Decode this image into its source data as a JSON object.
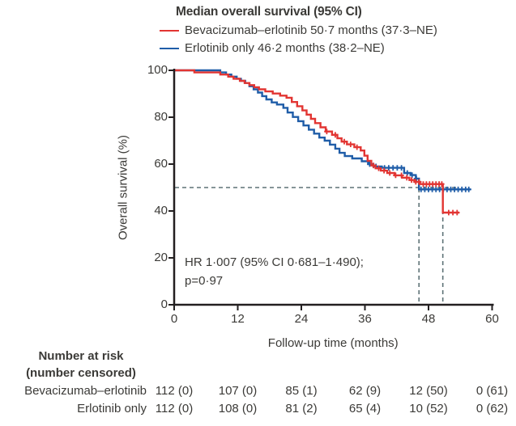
{
  "figure": {
    "legend": {
      "title": "Median overall survival (95% CI)",
      "items": [
        {
          "label": "Bevacizumab–erlotinib 50·7 months (37·3–NE)",
          "color": "#e23532"
        },
        {
          "label": "Erlotinib only 46·2 months (38·2–NE)",
          "color": "#1f5da8"
        }
      ]
    },
    "annotation": {
      "line1": "HR 1·007 (95% CI 0·681–1·490);",
      "line2": "p=0·97"
    },
    "colors": {
      "bevacizumab_erlotinib": "#e23532",
      "erlotinib_only": "#1f5da8",
      "reference_dash": "#5e7276",
      "axis": "#231f20",
      "text": "#3b3a37"
    }
  },
  "chart_data": {
    "type": "line",
    "subtype": "kaplan-meier-step",
    "title": "Median overall survival (95% CI)",
    "xlabel": "Follow-up time (months)",
    "ylabel": "Overall survival (%)",
    "xlim": [
      0,
      60
    ],
    "ylim": [
      0,
      100
    ],
    "xticks": [
      0,
      12,
      24,
      36,
      48,
      60
    ],
    "yticks": [
      0,
      20,
      40,
      60,
      80,
      100
    ],
    "grid": false,
    "legend_position": "top",
    "hr_annotation": "HR 1·007 (95% CI 0·681–1·490); p=0·97",
    "reference_lines": {
      "horizontal_pct": 50,
      "vertical_months": [
        46.2,
        50.7
      ]
    },
    "series": [
      {
        "name": "Bevacizumab–erlotinib",
        "color": "#e23532",
        "median_months": 50.7,
        "ci_95": "37·3–NE",
        "end_time": 53.8,
        "steps": [
          [
            0,
            100
          ],
          [
            3.8,
            99.1
          ],
          [
            8.7,
            98.2
          ],
          [
            10.2,
            97.3
          ],
          [
            11.2,
            96.4
          ],
          [
            12.4,
            95.5
          ],
          [
            13.3,
            94.6
          ],
          [
            14.2,
            93.7
          ],
          [
            15.1,
            92.8
          ],
          [
            16,
            91.9
          ],
          [
            17.2,
            91
          ],
          [
            18.6,
            90.1
          ],
          [
            20,
            89.2
          ],
          [
            21.2,
            88.3
          ],
          [
            22.2,
            86.5
          ],
          [
            23.2,
            84.7
          ],
          [
            24.2,
            82.9
          ],
          [
            25,
            81.1
          ],
          [
            25.8,
            79.3
          ],
          [
            26.6,
            77.5
          ],
          [
            27.6,
            75.7
          ],
          [
            28.6,
            73.9
          ],
          [
            29.8,
            72.5
          ],
          [
            30.8,
            71
          ],
          [
            31.6,
            69.6
          ],
          [
            32.6,
            68.4
          ],
          [
            34,
            67.2
          ],
          [
            35.2,
            65.8
          ],
          [
            35.9,
            63.6
          ],
          [
            36.5,
            61.4
          ],
          [
            37.2,
            59.4
          ],
          [
            38,
            58.2
          ],
          [
            39,
            57.2
          ],
          [
            40.2,
            56.2
          ],
          [
            41.6,
            55.2
          ],
          [
            43,
            54.2
          ],
          [
            44.4,
            53.2
          ],
          [
            45.4,
            52.4
          ],
          [
            46.4,
            51.5
          ],
          [
            50.7,
            39.3
          ]
        ],
        "censor_times": [
          28.8,
          30.4,
          32.1,
          33.3,
          34.5,
          37.6,
          38.6,
          39.6,
          40.7,
          41.8,
          42.9,
          43.9,
          44.8,
          45.6,
          46.2,
          47,
          47.6,
          48.2,
          48.8,
          49.4,
          50,
          50.5,
          51.8,
          52.6,
          53.4
        ]
      },
      {
        "name": "Erlotinib only",
        "color": "#1f5da8",
        "median_months": 46.2,
        "ci_95": "38·2–NE",
        "end_time": 56,
        "steps": [
          [
            0,
            100
          ],
          [
            8.7,
            99.1
          ],
          [
            9.8,
            98.2
          ],
          [
            10.8,
            97.3
          ],
          [
            11.8,
            96.4
          ],
          [
            12.6,
            95.5
          ],
          [
            13.4,
            94.6
          ],
          [
            14.2,
            93.2
          ],
          [
            15,
            91.9
          ],
          [
            15.8,
            90.5
          ],
          [
            16.6,
            89
          ],
          [
            17.4,
            87.6
          ],
          [
            18.4,
            86.3
          ],
          [
            19.4,
            85.4
          ],
          [
            20.6,
            84
          ],
          [
            21.4,
            82
          ],
          [
            22.4,
            80.1
          ],
          [
            23.4,
            78.3
          ],
          [
            24.4,
            76.5
          ],
          [
            25.4,
            74.7
          ],
          [
            26.4,
            73
          ],
          [
            27.4,
            71.3
          ],
          [
            28.4,
            70
          ],
          [
            29.4,
            68.3
          ],
          [
            30.4,
            66.6
          ],
          [
            31.2,
            64.8
          ],
          [
            32.2,
            63.4
          ],
          [
            33.6,
            62.4
          ],
          [
            35.4,
            61.2
          ],
          [
            36.6,
            60
          ],
          [
            37.6,
            59
          ],
          [
            39.2,
            58.4
          ],
          [
            43.4,
            56.2
          ],
          [
            44.6,
            55.3
          ],
          [
            45.6,
            53.8
          ],
          [
            46.2,
            49.2
          ]
        ],
        "censor_times": [
          36.9,
          38.1,
          39.7,
          40.5,
          41.3,
          42.1,
          42.9,
          44,
          44.9,
          45.7,
          46.6,
          47.3,
          48,
          48.7,
          49.4,
          50.1,
          50.8,
          51.5,
          52.2,
          52.9,
          53.6,
          54.3,
          55,
          55.6
        ]
      }
    ]
  },
  "risk_table": {
    "header_line1": "Number at risk",
    "header_line2": "(number censored)",
    "timepoints": [
      0,
      12,
      24,
      36,
      48,
      60
    ],
    "rows": [
      {
        "label": "Bevacizumab–erlotinib",
        "values": [
          "112 (0)",
          "107 (0)",
          "85 (1)",
          "62 (9)",
          "12 (50)",
          "0 (61)"
        ]
      },
      {
        "label": "Erlotinib only",
        "values": [
          "112 (0)",
          "108 (0)",
          "81 (2)",
          "65 (4)",
          "10 (52)",
          "0 (62)"
        ]
      }
    ]
  }
}
